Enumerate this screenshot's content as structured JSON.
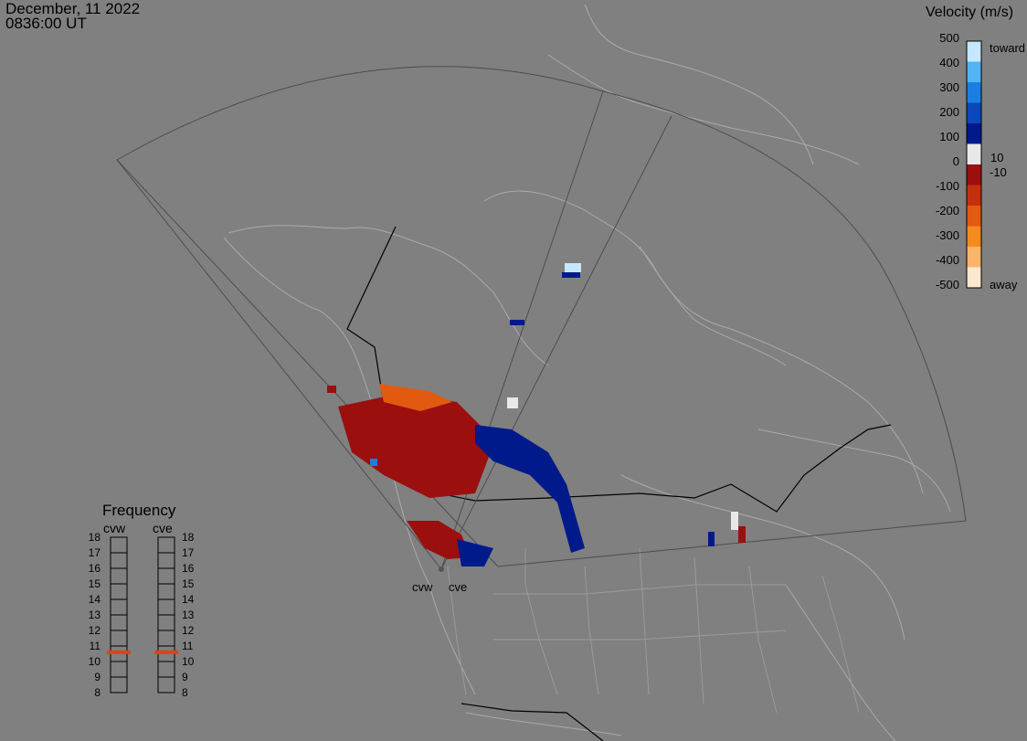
{
  "header": {
    "date": "December, 11 2022",
    "time": "0836:00 UT"
  },
  "colorbar": {
    "title": "Velocity (m/s)",
    "ticks": [
      "500",
      "400",
      "300",
      "200",
      "100",
      "0",
      "-100",
      "-200",
      "-300",
      "-400",
      "-500"
    ],
    "toward_label": "toward",
    "away_label": "away",
    "pos_threshold": "10",
    "neg_threshold": "-10",
    "colors": [
      "#fde7d0",
      "#fbb56b",
      "#f58a1e",
      "#e25a10",
      "#c2300c",
      "#9b0f0f",
      "#e8e8e8",
      "#001a8c",
      "#0a48b8",
      "#1a7fe0",
      "#50b4f5",
      "#c6e8ff"
    ]
  },
  "frequency": {
    "title": "Frequency",
    "radars": [
      "cvw",
      "cve"
    ],
    "levels": [
      "18",
      "17",
      "16",
      "15",
      "14",
      "13",
      "12",
      "11",
      "10",
      "9",
      "8"
    ],
    "cvw_mhz": 10.6,
    "cve_mhz": 10.6,
    "indicator_color": "#e0401c"
  },
  "radar_sites": {
    "cvw": "cvw",
    "cve": "cve"
  }
}
